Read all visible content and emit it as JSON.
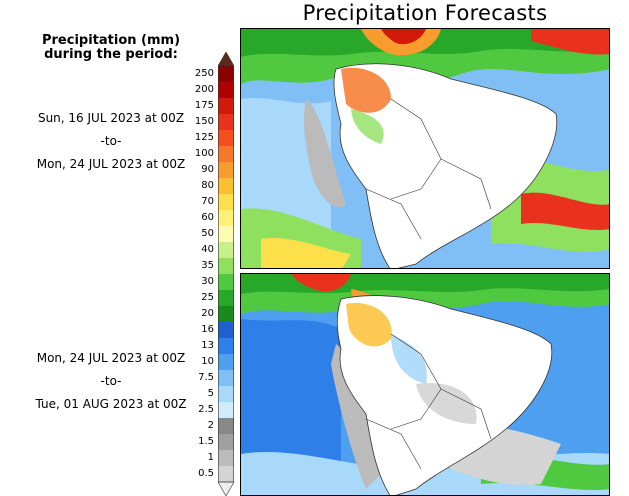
{
  "title": "Precipitation Forecasts",
  "legend": {
    "title_line1": "Precipitation (mm)",
    "title_line2": "during the period:",
    "ticks": [
      "250",
      "200",
      "175",
      "150",
      "125",
      "100",
      "90",
      "80",
      "70",
      "60",
      "50",
      "40",
      "35",
      "30",
      "25",
      "20",
      "16",
      "13",
      "10",
      "7.5",
      "5",
      "2.5",
      "2",
      "1.5",
      "1",
      "0.5"
    ],
    "colors": [
      "#5a2a1a",
      "#8b0000",
      "#b00000",
      "#d11a0a",
      "#e8321e",
      "#f4501e",
      "#f7782a",
      "#f99c2e",
      "#fbbf34",
      "#fddf4a",
      "#fff07a",
      "#fffbb0",
      "#c8f08a",
      "#90e060",
      "#50c840",
      "#28a828",
      "#1a8a1a",
      "#1f5fd0",
      "#2f7fe8",
      "#4f9ff0",
      "#7fbff6",
      "#a8d8fa",
      "#d0ecfc",
      "#888888",
      "#a0a0a0",
      "#bbbbbb",
      "#d4d4d4",
      "#eeeeee"
    ]
  },
  "periods": [
    {
      "start": "Sun, 16 JUL 2023 at 00Z",
      "sep": "-to-",
      "end": "Mon, 24 JUL 2023 at 00Z"
    },
    {
      "start": "Mon, 24 JUL 2023 at 00Z",
      "sep": "-to-",
      "end": "Tue, 01 AUG 2023 at 00Z"
    }
  ]
}
